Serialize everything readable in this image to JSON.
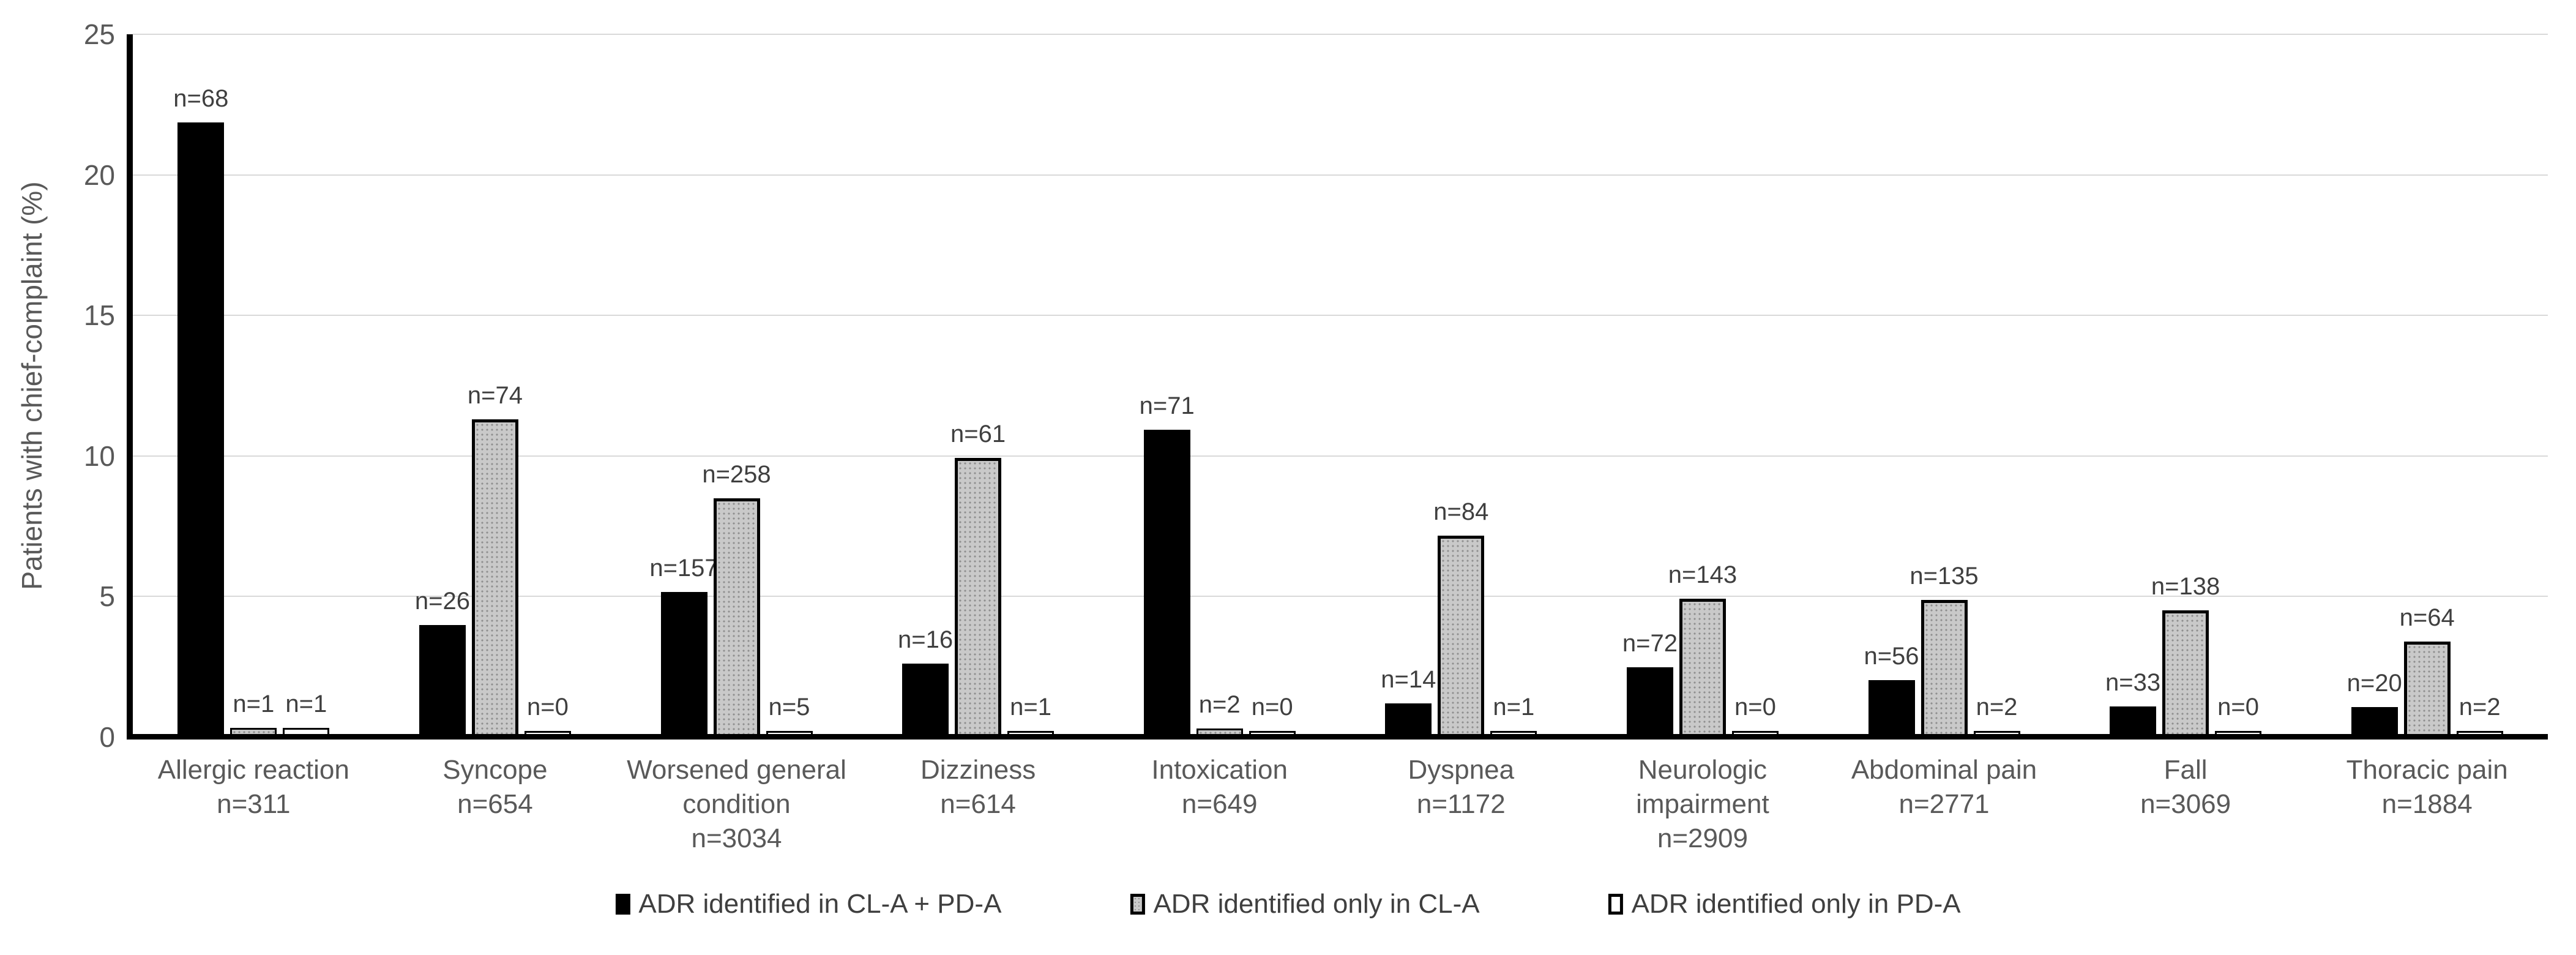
{
  "chart_data": {
    "type": "bar",
    "title": "",
    "xlabel": "",
    "ylabel": "Patients with chief-complaint (%)",
    "ylim": [
      0,
      25
    ],
    "yticks": [
      0,
      5,
      10,
      15,
      20,
      25
    ],
    "grid": true,
    "legend_position": "bottom",
    "categories": [
      "Allergic reaction",
      "Syncope",
      "Worsened general condition",
      "Dizziness",
      "Intoxication",
      "Dyspnea",
      "Neurologic impairment",
      "Abdominal pain",
      "Fall",
      "Thoracic pain"
    ],
    "category_totals": [
      "n=311",
      "n=654",
      "n=3034",
      "n=614",
      "n=649",
      "n=1172",
      "n=2909",
      "n=2771",
      "n=3069",
      "n=1884"
    ],
    "series": [
      {
        "name": "ADR identified in CL-A + PD-A",
        "style": "black",
        "color": "#000000",
        "counts": [
          68,
          26,
          157,
          16,
          71,
          14,
          72,
          56,
          33,
          20
        ],
        "labels": [
          "n=68",
          "n=26",
          "n=157",
          "n=16",
          "n=71",
          "n=14",
          "n=72",
          "n=56",
          "n=33",
          "n=20"
        ],
        "values": [
          21.86,
          3.98,
          5.17,
          2.61,
          10.94,
          1.19,
          2.48,
          2.02,
          1.08,
          1.06
        ]
      },
      {
        "name": "ADR identified only in CL-A",
        "style": "gray-pattern",
        "color": "#c9c9c9",
        "counts": [
          1,
          74,
          258,
          61,
          2,
          84,
          143,
          135,
          138,
          64
        ],
        "labels": [
          "n=1",
          "n=74",
          "n=258",
          "n=61",
          "n=2",
          "n=84",
          "n=143",
          "n=135",
          "n=138",
          "n=64"
        ],
        "values": [
          0.32,
          11.31,
          8.5,
          9.93,
          0.31,
          7.17,
          4.92,
          4.87,
          4.5,
          3.4
        ]
      },
      {
        "name": "ADR identified only in PD-A",
        "style": "white",
        "color": "#ffffff",
        "counts": [
          1,
          0,
          5,
          1,
          0,
          1,
          0,
          2,
          0,
          2
        ],
        "labels": [
          "n=1",
          "n=0",
          "n=5",
          "n=1",
          "n=0",
          "n=1",
          "n=0",
          "n=2",
          "n=0",
          "n=2"
        ],
        "values": [
          0.32,
          0,
          0.16,
          0.16,
          0,
          0.09,
          0,
          0.07,
          0,
          0.11
        ]
      }
    ]
  },
  "colors": {
    "gridline": "#d9d9d9",
    "axis": "#000000",
    "tick_text": "#595959",
    "label_text": "#3f3f3f"
  }
}
